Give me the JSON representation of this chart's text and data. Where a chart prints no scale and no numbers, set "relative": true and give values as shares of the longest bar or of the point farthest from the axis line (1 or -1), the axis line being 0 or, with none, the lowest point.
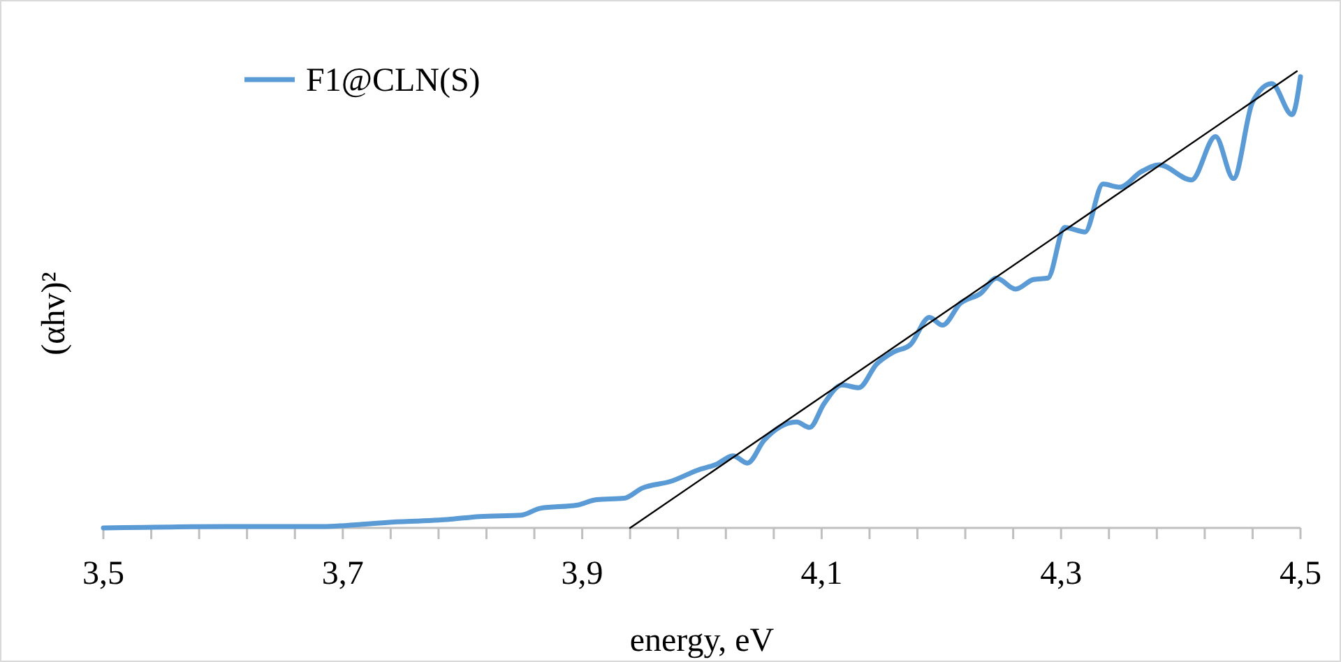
{
  "chart_data": {
    "type": "line",
    "relative": true,
    "xlabel": "energy, eV",
    "ylabel": "(αhv)²",
    "xlim": [
      3.5,
      4.5
    ],
    "xticks": [
      {
        "value": 3.5,
        "label": "3,5"
      },
      {
        "value": 3.54,
        "label": null
      },
      {
        "value": 3.58,
        "label": null
      },
      {
        "value": 3.62,
        "label": null
      },
      {
        "value": 3.66,
        "label": null
      },
      {
        "value": 3.7,
        "label": "3,7"
      },
      {
        "value": 3.74,
        "label": null
      },
      {
        "value": 3.78,
        "label": null
      },
      {
        "value": 3.82,
        "label": null
      },
      {
        "value": 3.86,
        "label": null
      },
      {
        "value": 3.9,
        "label": "3,9"
      },
      {
        "value": 3.94,
        "label": null
      },
      {
        "value": 3.98,
        "label": null
      },
      {
        "value": 4.02,
        "label": null
      },
      {
        "value": 4.06,
        "label": null
      },
      {
        "value": 4.1,
        "label": "4,1"
      },
      {
        "value": 4.14,
        "label": null
      },
      {
        "value": 4.18,
        "label": null
      },
      {
        "value": 4.22,
        "label": null
      },
      {
        "value": 4.26,
        "label": null
      },
      {
        "value": 4.3,
        "label": "4,3"
      },
      {
        "value": 4.34,
        "label": null
      },
      {
        "value": 4.38,
        "label": null
      },
      {
        "value": 4.42,
        "label": null
      },
      {
        "value": 4.46,
        "label": null
      },
      {
        "value": 4.5,
        "label": "4,5"
      }
    ],
    "grid": false,
    "legend": "top left",
    "marker": "none",
    "line_style": "solid",
    "series": [
      {
        "name": "F1@CLN(S)",
        "color": "#5b9bd5",
        "x": [
          3.5,
          3.6,
          3.68,
          3.737,
          3.79,
          3.814,
          3.849,
          3.865,
          3.896,
          3.912,
          3.935,
          3.95,
          3.974,
          3.997,
          4.012,
          4.026,
          4.038,
          4.052,
          4.079,
          4.09,
          4.102,
          4.117,
          4.131,
          4.146,
          4.16,
          4.174,
          4.19,
          4.201,
          4.216,
          4.233,
          4.246,
          4.262,
          4.277,
          4.289,
          4.303,
          4.32,
          4.335,
          4.349,
          4.367,
          4.382,
          4.409,
          4.429,
          4.444,
          4.46,
          4.476,
          4.493,
          4.5
        ],
        "values": [
          0,
          0.003,
          0.003,
          0.012,
          0.019,
          0.025,
          0.028,
          0.043,
          0.05,
          0.062,
          0.065,
          0.087,
          0.102,
          0.127,
          0.139,
          0.158,
          0.142,
          0.192,
          0.232,
          0.22,
          0.272,
          0.313,
          0.307,
          0.359,
          0.385,
          0.401,
          0.461,
          0.444,
          0.492,
          0.514,
          0.547,
          0.523,
          0.544,
          0.547,
          0.658,
          0.648,
          0.753,
          0.746,
          0.78,
          0.795,
          0.762,
          0.857,
          0.765,
          0.933,
          0.973,
          0.905,
          0.988
        ]
      },
      {
        "type": "line",
        "color": "#000000",
        "x": [
          3.94,
          4.497
        ],
        "values": [
          0,
          1
        ]
      }
    ]
  }
}
